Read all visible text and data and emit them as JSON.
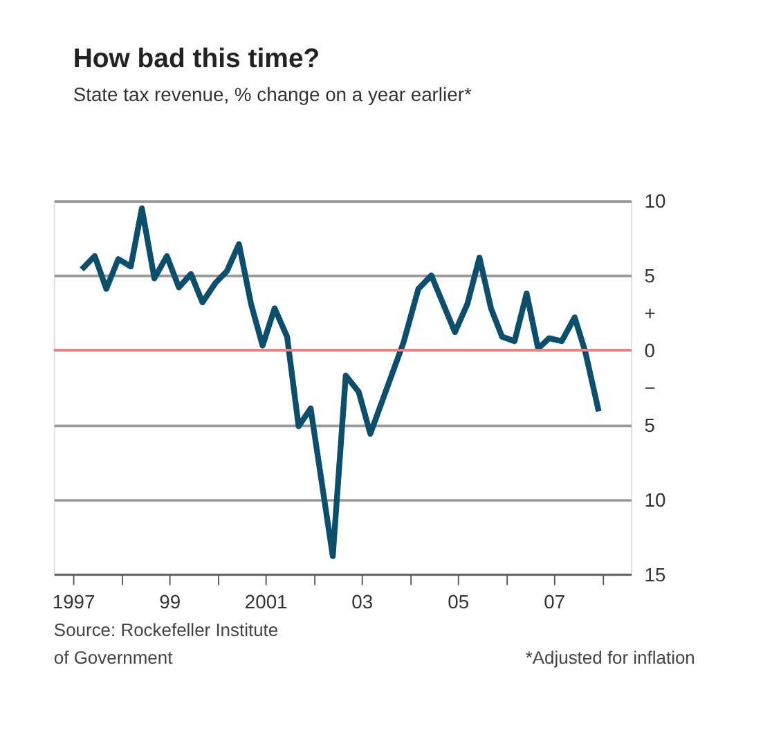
{
  "chart_data": {
    "type": "line",
    "title": "How bad this time?",
    "subtitle": "State tax revenue, % change on a year earlier*",
    "x": [
      1997.18,
      1997.45,
      1997.69,
      1997.94,
      1998.2,
      1998.43,
      1998.69,
      1998.95,
      1999.2,
      1999.45,
      1999.69,
      1999.96,
      2000.2,
      2000.45,
      2000.7,
      2000.94,
      2001.19,
      2001.45,
      2001.69,
      2001.94,
      2002.4,
      2002.67,
      2002.94,
      2003.18,
      2003.87,
      2004.18,
      2004.45,
      2004.94,
      2005.2,
      2005.45,
      2005.69,
      2005.92,
      2006.18,
      2006.43,
      2006.67,
      2006.9,
      2007.16,
      2007.43,
      2007.65,
      2007.93
    ],
    "series": [
      {
        "color": "#0b4f6c",
        "values": [
          5.4,
          6.3,
          4.1,
          6.1,
          5.6,
          9.5,
          4.8,
          6.3,
          4.2,
          5.1,
          3.2,
          4.5,
          5.3,
          7.1,
          3.1,
          0.3,
          2.8,
          0.9,
          -5.1,
          -3.9,
          -13.8,
          -1.7,
          -2.8,
          -5.6,
          0.5,
          4.1,
          5.0,
          1.2,
          3.1,
          6.2,
          2.8,
          0.9,
          0.6,
          3.8,
          0.1,
          0.8,
          0.6,
          2.2,
          -0.1,
          -4.1
        ]
      }
    ],
    "xlim": [
      1996.6,
      2008.6
    ],
    "xticks": [
      1997,
      {
        "value": 1998,
        "label": null
      },
      {
        "value": 1999,
        "label": "99"
      },
      {
        "value": 2000,
        "label": null
      },
      2001,
      {
        "value": 2002,
        "label": null
      },
      {
        "value": 2003,
        "label": "03"
      },
      {
        "value": 2004,
        "label": null
      },
      {
        "value": 2005,
        "label": "05"
      },
      {
        "value": 2006,
        "label": null
      },
      {
        "value": 2007,
        "label": "07"
      },
      {
        "value": 2008,
        "label": null
      }
    ],
    "ylim": [
      -15,
      10
    ],
    "yticks": [
      10,
      5,
      {
        "value": 2.5,
        "label": "+"
      },
      0,
      {
        "value": -2.5,
        "label": "−"
      },
      {
        "value": -5,
        "label": "5"
      },
      {
        "value": -10,
        "label": "10"
      },
      {
        "value": -15,
        "label": "15"
      }
    ],
    "ref_lines": [
      {
        "axis": "y",
        "value": 0,
        "color": "#f08080"
      }
    ],
    "grid": "y",
    "marker": "none",
    "line_style": "solid",
    "annotations": [
      "Source: Rockefeller Institute\nof Government",
      "*Adjusted for inflation"
    ]
  }
}
